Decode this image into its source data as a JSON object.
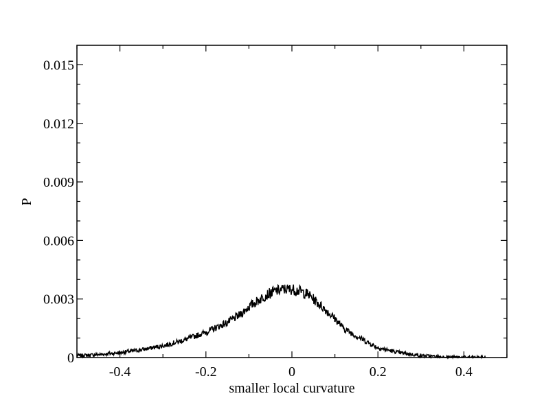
{
  "chart_data": {
    "type": "line",
    "title": "",
    "xlabel": "smaller local curvature",
    "ylabel": "P",
    "xlim": [
      -0.5,
      0.5
    ],
    "ylim": [
      0,
      0.016
    ],
    "grid": false,
    "legend": "none",
    "line_color": "#000000",
    "x_ticks": [
      -0.4,
      -0.2,
      0,
      0.2,
      0.4
    ],
    "x_tick_labels": [
      "-0.4",
      "-0.2",
      "0",
      "0.2",
      "0.4"
    ],
    "y_ticks": [
      0,
      0.003,
      0.006,
      0.009,
      0.012,
      0.015
    ],
    "y_tick_labels": [
      "0",
      "0.003",
      "0.006",
      "0.009",
      "0.012",
      "0.015"
    ],
    "series": [
      {
        "x": [
          -0.5,
          -0.45,
          -0.4,
          -0.35,
          -0.3,
          -0.25,
          -0.2,
          -0.15,
          -0.12,
          -0.1,
          -0.08,
          -0.06,
          -0.04,
          -0.02,
          0,
          0.02,
          0.04,
          0.06,
          0.08,
          0.1,
          0.12,
          0.15,
          0.2,
          0.25,
          0.3,
          0.35,
          0.4,
          0.45
        ],
        "y": [
          0.0001,
          0.00015,
          0.00025,
          0.0004,
          0.0006,
          0.0009,
          0.0013,
          0.0018,
          0.0022,
          0.0026,
          0.0029,
          0.0032,
          0.0034,
          0.0035,
          0.0035,
          0.0034,
          0.0032,
          0.0028,
          0.0024,
          0.002,
          0.0015,
          0.0011,
          0.0005,
          0.00025,
          0.0001,
          3e-05,
          1e-05,
          0
        ]
      }
    ]
  }
}
